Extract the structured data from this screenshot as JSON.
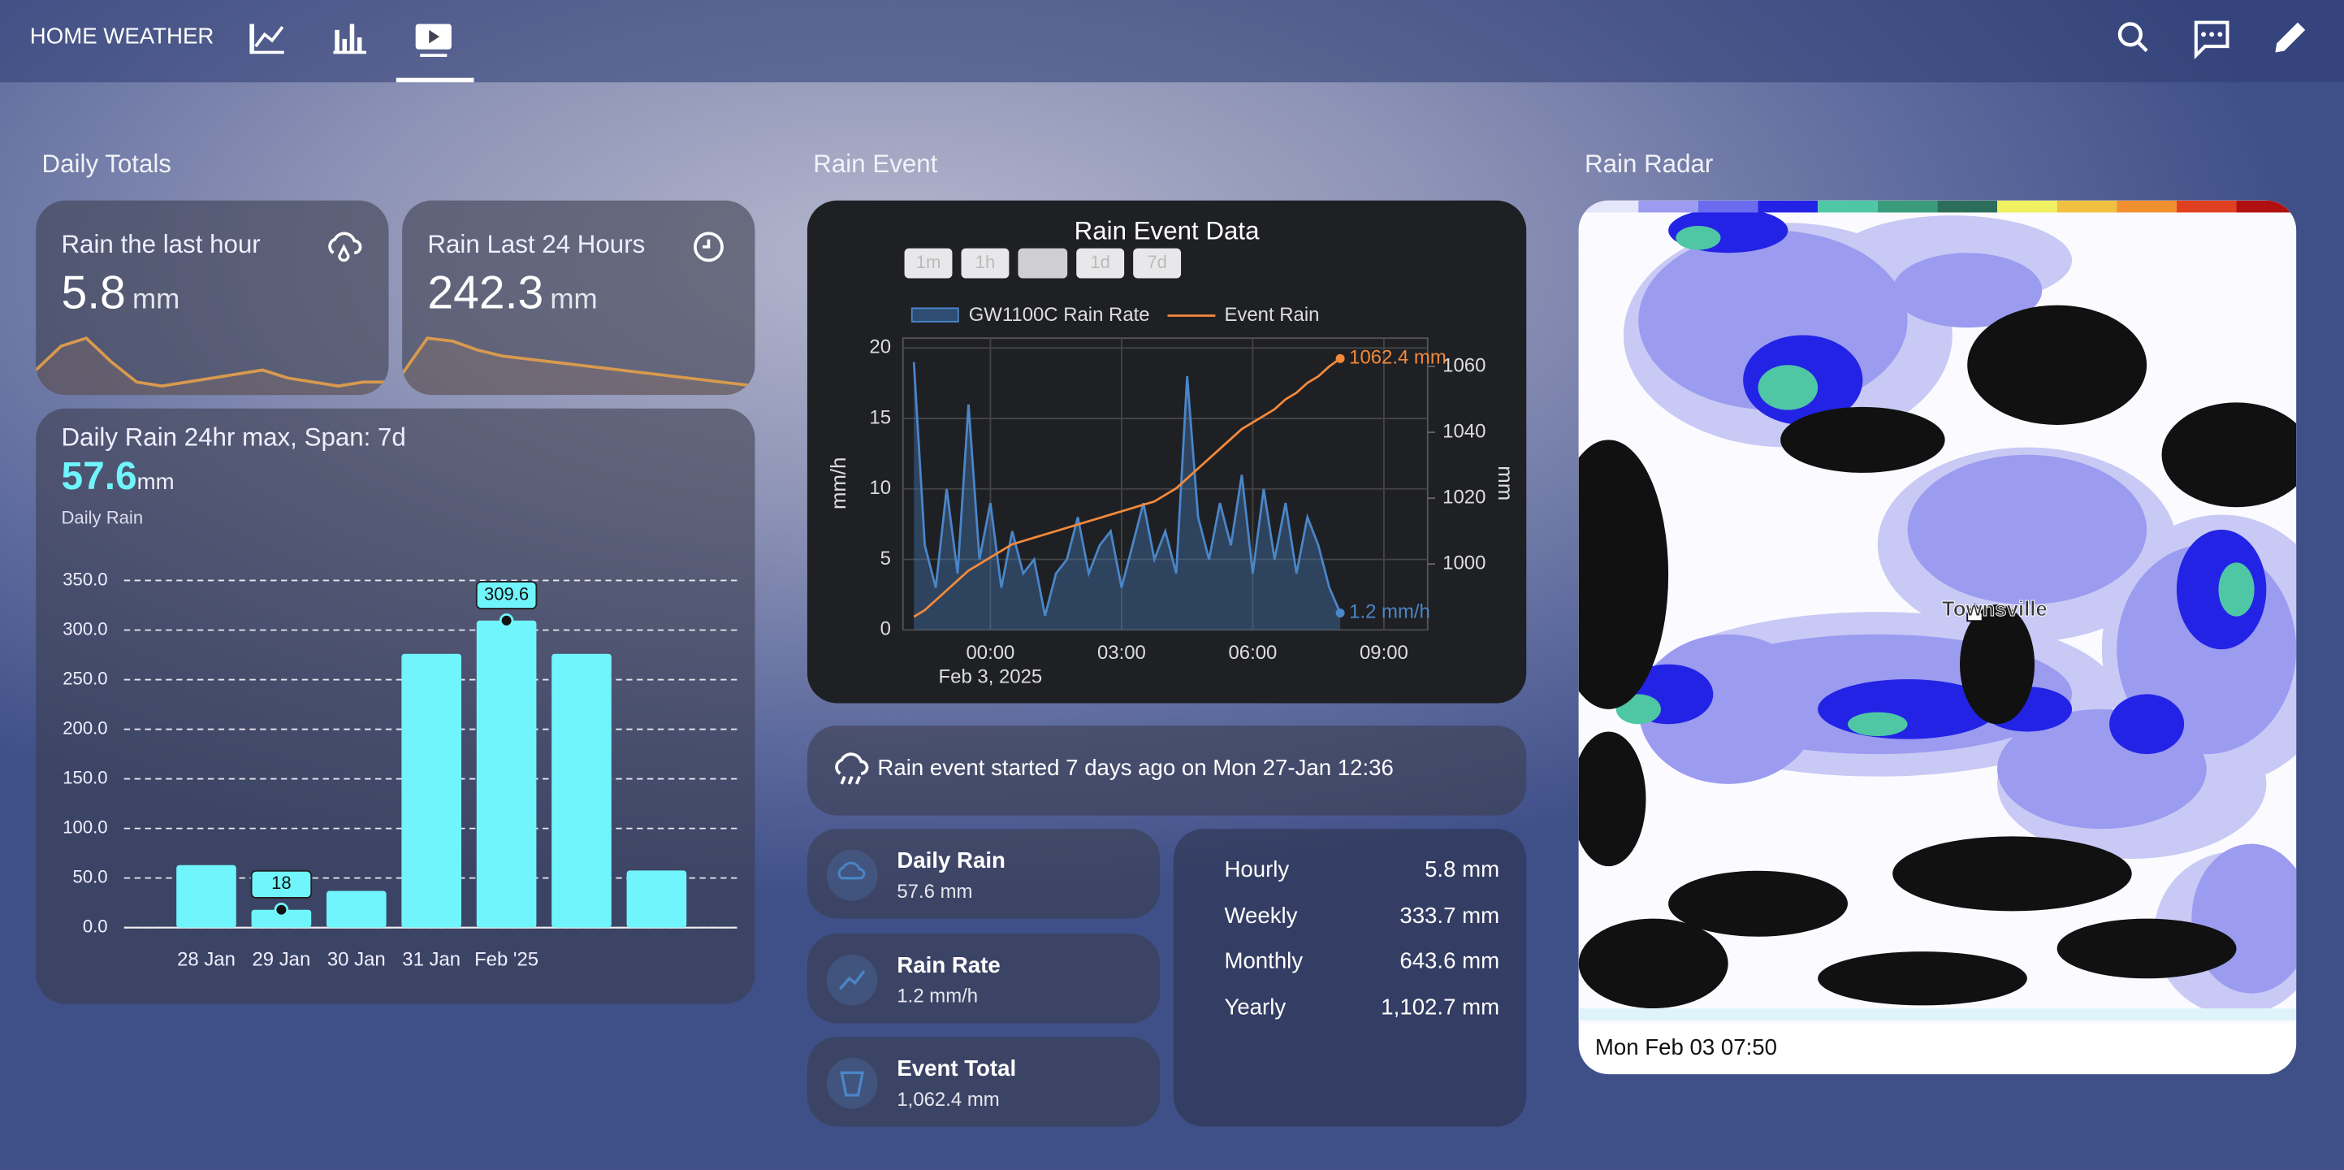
{
  "header": {
    "title": "HOME WEATHER"
  },
  "daily_totals": {
    "heading": "Daily Totals",
    "cards": [
      {
        "label": "Rain the last hour",
        "value": 5.8,
        "unit": "mm",
        "sparkline": [
          3,
          6,
          7,
          4,
          1.5,
          1,
          1.5,
          2,
          2.5,
          3,
          2,
          1.5,
          1,
          1.5,
          1.5
        ]
      },
      {
        "label": "Rain Last 24 Hours",
        "value": 242.3,
        "unit": "mm",
        "sparkline": [
          250,
          262,
          261,
          258,
          256,
          255,
          254,
          253,
          252,
          251,
          250,
          249,
          248,
          247,
          246
        ]
      }
    ]
  },
  "chart_data": [
    {
      "type": "bar",
      "title": "Daily Rain 24hr max, Span: 7d",
      "headline_value": 57.6,
      "headline_unit": "mm",
      "subtitle": "Daily Rain",
      "categories": [
        "28 Jan",
        "29 Jan",
        "30 Jan",
        "31 Jan",
        "Feb '25",
        null,
        null
      ],
      "values": [
        63,
        18,
        37,
        276,
        309.6,
        276,
        57.6
      ],
      "value_labels": [
        null,
        "18",
        null,
        null,
        "309.6",
        null,
        null
      ],
      "color": "#6ff5fb",
      "ylim": [
        0,
        350
      ],
      "yticks": [
        {
          "value": 0,
          "label": "0.0"
        },
        {
          "value": 50,
          "label": "50.0"
        },
        {
          "value": 100,
          "label": "100.0"
        },
        {
          "value": 150,
          "label": "150.0"
        },
        {
          "value": 200,
          "label": "200.0"
        },
        {
          "value": 250,
          "label": "250.0"
        },
        {
          "value": 300,
          "label": "300.0"
        },
        {
          "value": 350,
          "label": "350.0"
        }
      ],
      "grid": true
    },
    {
      "type": "line",
      "title": "Rain Event Data",
      "range_buttons": [
        "1m",
        "1h",
        "1d",
        "7d"
      ],
      "x": [
        -1.75,
        -1.5,
        -1.25,
        -1,
        -0.75,
        -0.5,
        -0.25,
        0,
        0.25,
        0.5,
        0.75,
        1,
        1.25,
        1.5,
        1.75,
        2,
        2.25,
        2.5,
        2.75,
        3,
        3.25,
        3.5,
        3.75,
        4,
        4.25,
        4.5,
        4.75,
        5,
        5.25,
        5.5,
        5.75,
        6,
        6.25,
        6.5,
        6.75,
        7,
        7.25,
        7.5,
        7.75,
        8
      ],
      "xlim": [
        -2,
        10
      ],
      "xticks": [
        {
          "value": 0,
          "label": "00:00"
        },
        {
          "value": 3,
          "label": "03:00"
        },
        {
          "value": 6,
          "label": "06:00"
        },
        {
          "value": 9,
          "label": "09:00"
        }
      ],
      "x_date_label": "Feb 3, 2025",
      "ylabel": "mm/h",
      "y2label": "mm",
      "ylim": [
        0,
        20.7
      ],
      "yticks": [
        0,
        5,
        10,
        15,
        20
      ],
      "y2lim": [
        980,
        1068.6
      ],
      "y2ticks": [
        1000,
        1020,
        1040,
        1060
      ],
      "grid": true,
      "series": [
        {
          "name": "GW1100C Rain Rate",
          "type": "area",
          "color": "#4a86c8",
          "values": [
            19,
            6,
            3,
            10,
            4,
            16,
            5,
            9,
            3,
            7,
            4,
            5,
            1,
            4,
            5,
            8,
            4,
            6,
            7,
            3,
            6,
            9,
            5,
            7,
            4,
            18,
            8,
            5,
            9,
            6,
            11,
            4,
            10,
            5,
            9,
            4,
            8,
            6,
            3,
            1.2
          ],
          "value_labels": [
            null,
            null,
            null,
            null,
            null,
            null,
            null,
            null,
            null,
            null,
            null,
            null,
            null,
            null,
            null,
            null,
            null,
            null,
            null,
            null,
            null,
            null,
            null,
            null,
            null,
            null,
            null,
            null,
            null,
            null,
            null,
            null,
            null,
            null,
            null,
            null,
            null,
            null,
            null,
            "1.2 mm/h"
          ]
        },
        {
          "name": "Event Rain",
          "type": "line",
          "color": "#f28a3c",
          "axis": "y2",
          "values": [
            984,
            986,
            989,
            992,
            995,
            998,
            1000,
            1002,
            1004,
            1006,
            1007,
            1008,
            1009,
            1010,
            1011,
            1012,
            1013,
            1014,
            1015,
            1016,
            1017,
            1018,
            1019,
            1021,
            1023,
            1026,
            1029,
            1032,
            1035,
            1038,
            1041,
            1043,
            1045,
            1047,
            1050,
            1052,
            1055,
            1057,
            1060,
            1062.4
          ],
          "value_labels": [
            null,
            null,
            null,
            null,
            null,
            null,
            null,
            null,
            null,
            null,
            null,
            null,
            null,
            null,
            null,
            null,
            null,
            null,
            null,
            null,
            null,
            null,
            null,
            null,
            null,
            null,
            null,
            null,
            null,
            null,
            null,
            null,
            null,
            null,
            null,
            null,
            null,
            null,
            null,
            "1062.4 mm"
          ]
        }
      ]
    }
  ],
  "rain_event": {
    "heading": "Rain Event",
    "started": "Rain event started 7 days ago on Mon 27-Jan 12:36",
    "tiles": [
      {
        "label": "Daily Rain",
        "value": "57.6 mm"
      },
      {
        "label": "Rain Rate",
        "value": "1.2 mm/h"
      },
      {
        "label": "Event Total",
        "value": "1,062.4 mm"
      }
    ],
    "totals": [
      {
        "label": "Hourly",
        "value": "5.8 mm"
      },
      {
        "label": "Weekly",
        "value": "333.7 mm"
      },
      {
        "label": "Monthly",
        "value": "643.6 mm"
      },
      {
        "label": "Yearly",
        "value": "1,102.7 mm"
      }
    ]
  },
  "radar": {
    "heading": "Rain Radar",
    "place": "Townsville",
    "timestamp": "Mon Feb 03 07:50"
  }
}
